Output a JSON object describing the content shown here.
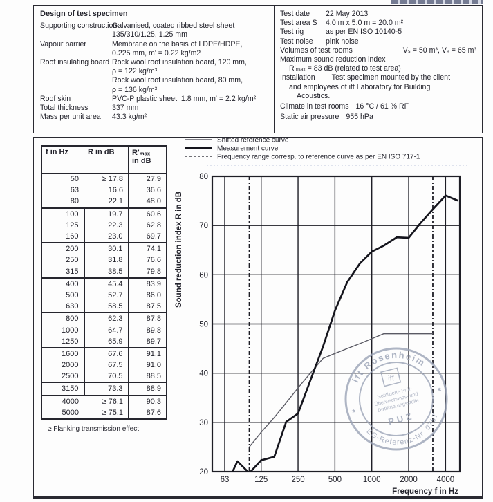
{
  "spec": {
    "title": "Design of test specimen",
    "rows": [
      {
        "label": "Supporting construction",
        "lines": [
          "Galvanised, coated ribbed steel sheet",
          "135/310/1.25, 1.25 mm"
        ]
      },
      {
        "label": "Vapour barrier",
        "lines": [
          "Membrane on the basis of LDPE/HDPE,",
          "0.225 mm, m' = 0.22 kg/m2"
        ]
      },
      {
        "label": "Roof insulating board",
        "lines": [
          "Rock wool roof insulation board, 120 mm,",
          "ρ = 122 kg/m³",
          "Rock wool roof insulation board, 80 mm,",
          "ρ = 136 kg/m³"
        ]
      },
      {
        "label": "Roof skin",
        "lines": [
          "PVC-P plastic sheet, 1.8 mm, m' = 2.2 kg/m²"
        ]
      },
      {
        "label": "Total thickness",
        "lines": [
          "337 mm"
        ]
      },
      {
        "label": "Mass per unit area",
        "lines": [
          "43.3 kg/m²"
        ]
      }
    ]
  },
  "test_info": {
    "rows": [
      {
        "label": "Test date",
        "value": "22 May 2013"
      },
      {
        "label": "Test area S",
        "value": "4.0 m x 5.0 m = 20.0 m²"
      },
      {
        "label": "Test rig",
        "value": "as per EN ISO 10140-5"
      },
      {
        "label": "Test noise",
        "value": "pink noise"
      }
    ],
    "volumes_label": "Volumes of test rooms",
    "volumes_value": "Vₛ = 50 m³, Vₑ = 65 m³",
    "max_sri_label": "Maximum sound reduction index",
    "max_sri_value": "R'ₘₐₓ = 83 dB (related to test area)",
    "installation_label": "Installation",
    "installation_line1": "Test specimen mounted by the client",
    "installation_line2": "and employees of ift Laboratory for Building",
    "installation_line3": "Acoustics.",
    "climate_label": "Climate in test rooms",
    "climate_value": "16 °C / 61 % RF",
    "pressure_label": "Static air pressure",
    "pressure_value": "955 hPa"
  },
  "table": {
    "headers": {
      "c1": "f in Hz",
      "c2": "R in dB",
      "c3a": "R'ₘₐₓ",
      "c3b": "in dB"
    },
    "rows": [
      {
        "f": "50",
        "r": "≥ 17.8",
        "rmax": "27.9"
      },
      {
        "f": "63",
        "r": "16.6",
        "rmax": "36.6"
      },
      {
        "f": "80",
        "r": "22.1",
        "rmax": "48.0"
      },
      {
        "f": "100",
        "r": "19.7",
        "rmax": "60.6"
      },
      {
        "f": "125",
        "r": "22.3",
        "rmax": "62.8"
      },
      {
        "f": "160",
        "r": "23.0",
        "rmax": "69.7"
      },
      {
        "f": "200",
        "r": "30.1",
        "rmax": "74.1"
      },
      {
        "f": "250",
        "r": "31.8",
        "rmax": "76.6"
      },
      {
        "f": "315",
        "r": "38.5",
        "rmax": "79.8"
      },
      {
        "f": "400",
        "r": "45.4",
        "rmax": "83.9"
      },
      {
        "f": "500",
        "r": "52.7",
        "rmax": "86.0"
      },
      {
        "f": "630",
        "r": "58.5",
        "rmax": "87.5"
      },
      {
        "f": "800",
        "r": "62.3",
        "rmax": "87.8"
      },
      {
        "f": "1000",
        "r": "64.7",
        "rmax": "89.8"
      },
      {
        "f": "1250",
        "r": "65.9",
        "rmax": "89.7"
      },
      {
        "f": "1600",
        "r": "67.6",
        "rmax": "91.1"
      },
      {
        "f": "2000",
        "r": "67.5",
        "rmax": "91.0"
      },
      {
        "f": "2500",
        "r": "70.5",
        "rmax": "88.5"
      },
      {
        "f": "3150",
        "r": "73.3",
        "rmax": "88.9"
      },
      {
        "f": "4000",
        "r": "≥ 76.1",
        "rmax": "90.3"
      },
      {
        "f": "5000",
        "r": "≥ 75.1",
        "rmax": "87.6"
      }
    ],
    "footnote": "≥ Flanking transmission effect"
  },
  "legend": {
    "items": [
      {
        "label": "Shifted reference curve",
        "style": "thin"
      },
      {
        "label": "Measurement curve",
        "style": "thick"
      },
      {
        "label": "Frequency range corresp. to reference curve as per EN ISO 717-1",
        "style": "dashed"
      }
    ]
  },
  "chart_data": {
    "type": "line",
    "title": "",
    "xlabel": "Frequency f in Hz",
    "ylabel": "Sound reduction index R in dB",
    "x_scale": "log",
    "xlim": [
      50,
      5200
    ],
    "ylim": [
      20,
      80
    ],
    "xticks": [
      63,
      125,
      250,
      500,
      1000,
      2000,
      4000
    ],
    "yticks": [
      20,
      30,
      40,
      50,
      60,
      70,
      80
    ],
    "grid": true,
    "legend_position": "top",
    "dashed_freq_range": [
      100,
      3150
    ],
    "series": [
      {
        "name": "Measurement curve",
        "x": [
          50,
          63,
          80,
          100,
          125,
          160,
          200,
          250,
          315,
          400,
          500,
          630,
          800,
          1000,
          1250,
          1600,
          2000,
          2500,
          3150,
          4000,
          5000
        ],
        "y": [
          17.8,
          16.6,
          22.1,
          19.7,
          22.3,
          23.0,
          30.1,
          31.8,
          38.5,
          45.4,
          52.7,
          58.5,
          62.3,
          64.7,
          65.9,
          67.6,
          67.5,
          70.5,
          73.3,
          76.1,
          75.1
        ]
      },
      {
        "name": "Shifted reference curve",
        "x": [
          100,
          125,
          160,
          200,
          250,
          315,
          400,
          500,
          630,
          800,
          1000,
          1250,
          1600,
          2000,
          2500,
          3150
        ],
        "y": [
          25,
          28,
          31,
          34,
          37,
          40,
          43,
          44,
          45,
          46,
          47,
          48,
          48,
          48,
          48,
          48
        ]
      }
    ]
  },
  "stamp": {
    "top_text": "ift Rosenheim",
    "logo": "ift",
    "center_lines": [
      "Notifizierte Prüf-",
      "Überwachungs- und",
      "Zertifizierungsstelle"
    ],
    "puz": "PUZ",
    "bottom_text": "EG-Referenz-Nr. 0757",
    "color": "#99a1b5"
  },
  "colors": {
    "ink": "#23232c",
    "border": "#2a2a32",
    "grid": "#1e1e26",
    "measurement": "#15151d",
    "reference": "#5a5a64",
    "stamp": "#99a1b5"
  }
}
